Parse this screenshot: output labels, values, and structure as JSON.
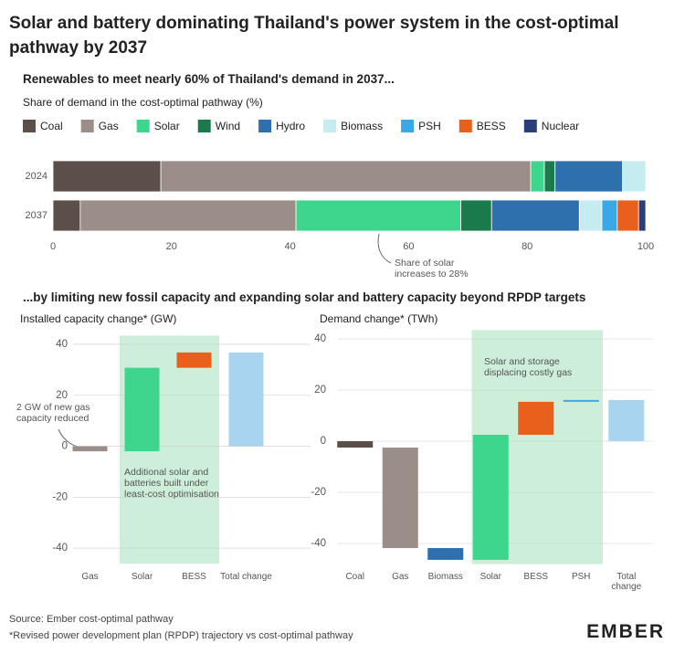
{
  "title": "Solar and battery dominating Thailand's power system in the cost-optimal pathway by 2037",
  "section_heading": "...by limiting new fossil capacity and expanding solar and battery capacity beyond RPDP targets",
  "source": "Source: Ember cost-optimal pathway",
  "footnote": "*Revised power development plan (RPDP) trajectory vs cost-optimal pathway",
  "logo": "EMBER",
  "chart_data": [
    {
      "type": "bar",
      "orientation": "horizontal",
      "stacked": true,
      "title": "Renewables to meet nearly 60% of Thailand's demand in 2037...",
      "subtitle": "Share of demand in the cost-optimal pathway (%)",
      "categories": [
        "2024",
        "2037"
      ],
      "series": [
        {
          "name": "Coal",
          "color": "#5c4f4a",
          "values": [
            18.2,
            4.6
          ]
        },
        {
          "name": "Gas",
          "color": "#9b8e89",
          "values": [
            62.4,
            36.4
          ]
        },
        {
          "name": "Solar",
          "color": "#3dd68c",
          "values": [
            2.3,
            27.8
          ]
        },
        {
          "name": "Wind",
          "color": "#1a7a4c",
          "values": [
            1.8,
            5.2
          ]
        },
        {
          "name": "Hydro",
          "color": "#2e6fad",
          "values": [
            11.4,
            14.8
          ]
        },
        {
          "name": "Biomass",
          "color": "#c5ecf0",
          "values": [
            3.9,
            3.8
          ]
        },
        {
          "name": "PSH",
          "color": "#3aa8e6",
          "values": [
            0,
            2.6
          ]
        },
        {
          "name": "BESS",
          "color": "#e8601c",
          "values": [
            0,
            3.6
          ]
        },
        {
          "name": "Nuclear",
          "color": "#2a3f7a",
          "values": [
            0,
            1.2
          ]
        }
      ],
      "xlim": [
        0,
        100
      ],
      "xticks": [
        0,
        20,
        40,
        60,
        80,
        100
      ],
      "legend": "top",
      "annotation": "Share of solar increases to 28%"
    },
    {
      "type": "waterfall",
      "ylabel": "Installed capacity change* (GW)",
      "categories": [
        "Gas",
        "Solar",
        "BESS",
        "Total change"
      ],
      "values": [
        -2,
        32.8,
        6,
        36.8
      ],
      "total": [
        false,
        false,
        false,
        true
      ],
      "colors": [
        "#9b8e89",
        "#3dd68c",
        "#e8601c",
        "#a8d4f0"
      ],
      "ylim": [
        -45,
        42
      ],
      "yticks": [
        -40,
        -20,
        0,
        20,
        40
      ],
      "grid": true,
      "highlight": [
        1,
        2
      ],
      "highlight_color": "#cdeed9",
      "annotations": [
        "2 GW of new gas capacity reduced",
        "Additional solar and batteries built under least-cost optimisation"
      ]
    },
    {
      "type": "waterfall",
      "ylabel": "Demand change* (TWh)",
      "categories": [
        "Coal",
        "Gas",
        "Biomass",
        "Solar",
        "BESS",
        "PSH",
        "Total change"
      ],
      "values": [
        -2.5,
        -39.3,
        -4.6,
        48.9,
        12.9,
        0.7,
        16.1
      ],
      "total": [
        false,
        false,
        false,
        false,
        false,
        false,
        true
      ],
      "colors": [
        "#5c4f4a",
        "#9b8e89",
        "#2e6fad",
        "#3dd68c",
        "#e8601c",
        "#3aa8e6",
        "#a8d4f0"
      ],
      "ylim": [
        -47,
        42
      ],
      "yticks": [
        -40,
        -20,
        0,
        20,
        40
      ],
      "grid": true,
      "highlight": [
        3,
        5
      ],
      "highlight_color": "#cdeed9",
      "annotations": [
        "Solar and storage displacing costly gas"
      ]
    }
  ]
}
